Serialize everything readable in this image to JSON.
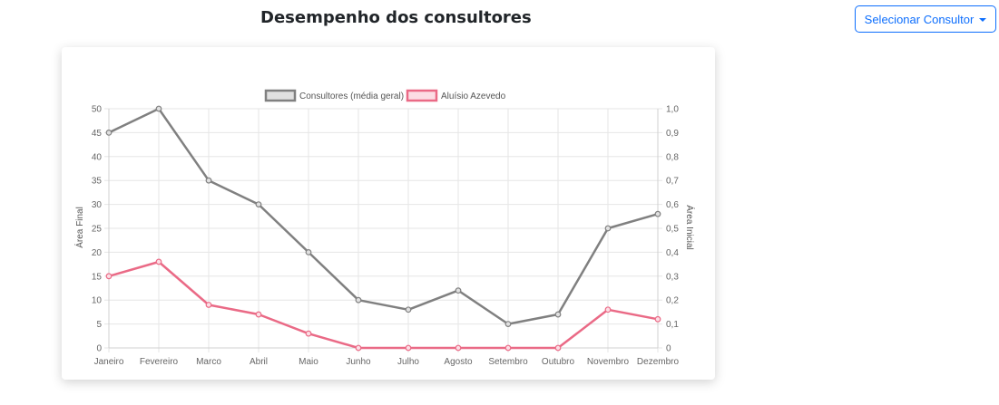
{
  "page": {
    "title": "Desempenho dos consultores"
  },
  "dropdown": {
    "label": "Selecionar Consultor",
    "icon": "caret-down-icon"
  },
  "chart_data": {
    "type": "line",
    "title": "",
    "categories": [
      "Janeiro",
      "Fevereiro",
      "Marco",
      "Abril",
      "Maio",
      "Junho",
      "Julho",
      "Agosto",
      "Setembro",
      "Outubro",
      "Novembro",
      "Dezembro"
    ],
    "series": [
      {
        "name": "Consultores (média geral)",
        "color": "#808080",
        "fill": "#e0e0e0",
        "values": [
          45,
          50,
          35,
          30,
          20,
          10,
          8,
          12,
          5,
          7,
          25,
          28
        ]
      },
      {
        "name": "Aluísio Azevedo",
        "color": "#ea6a86",
        "fill": "#fcdde4",
        "values": [
          15,
          18,
          9,
          7,
          3,
          0,
          0,
          0,
          0,
          0,
          8,
          6
        ]
      }
    ],
    "ylabel_left": "Área Final",
    "ylabel_right": "Área Inicial",
    "ylim_left": [
      0,
      50
    ],
    "yticks_left": [
      "50",
      "45",
      "40",
      "35",
      "30",
      "25",
      "20",
      "15",
      "10",
      "5",
      "0"
    ],
    "ylim_right": [
      0,
      1
    ],
    "yticks_right": [
      "1,0",
      "0,9",
      "0,8",
      "0,7",
      "0,6",
      "0,5",
      "0,4",
      "0,3",
      "0,2",
      "0,1",
      "0"
    ],
    "grid": true,
    "legend_position": "top"
  }
}
